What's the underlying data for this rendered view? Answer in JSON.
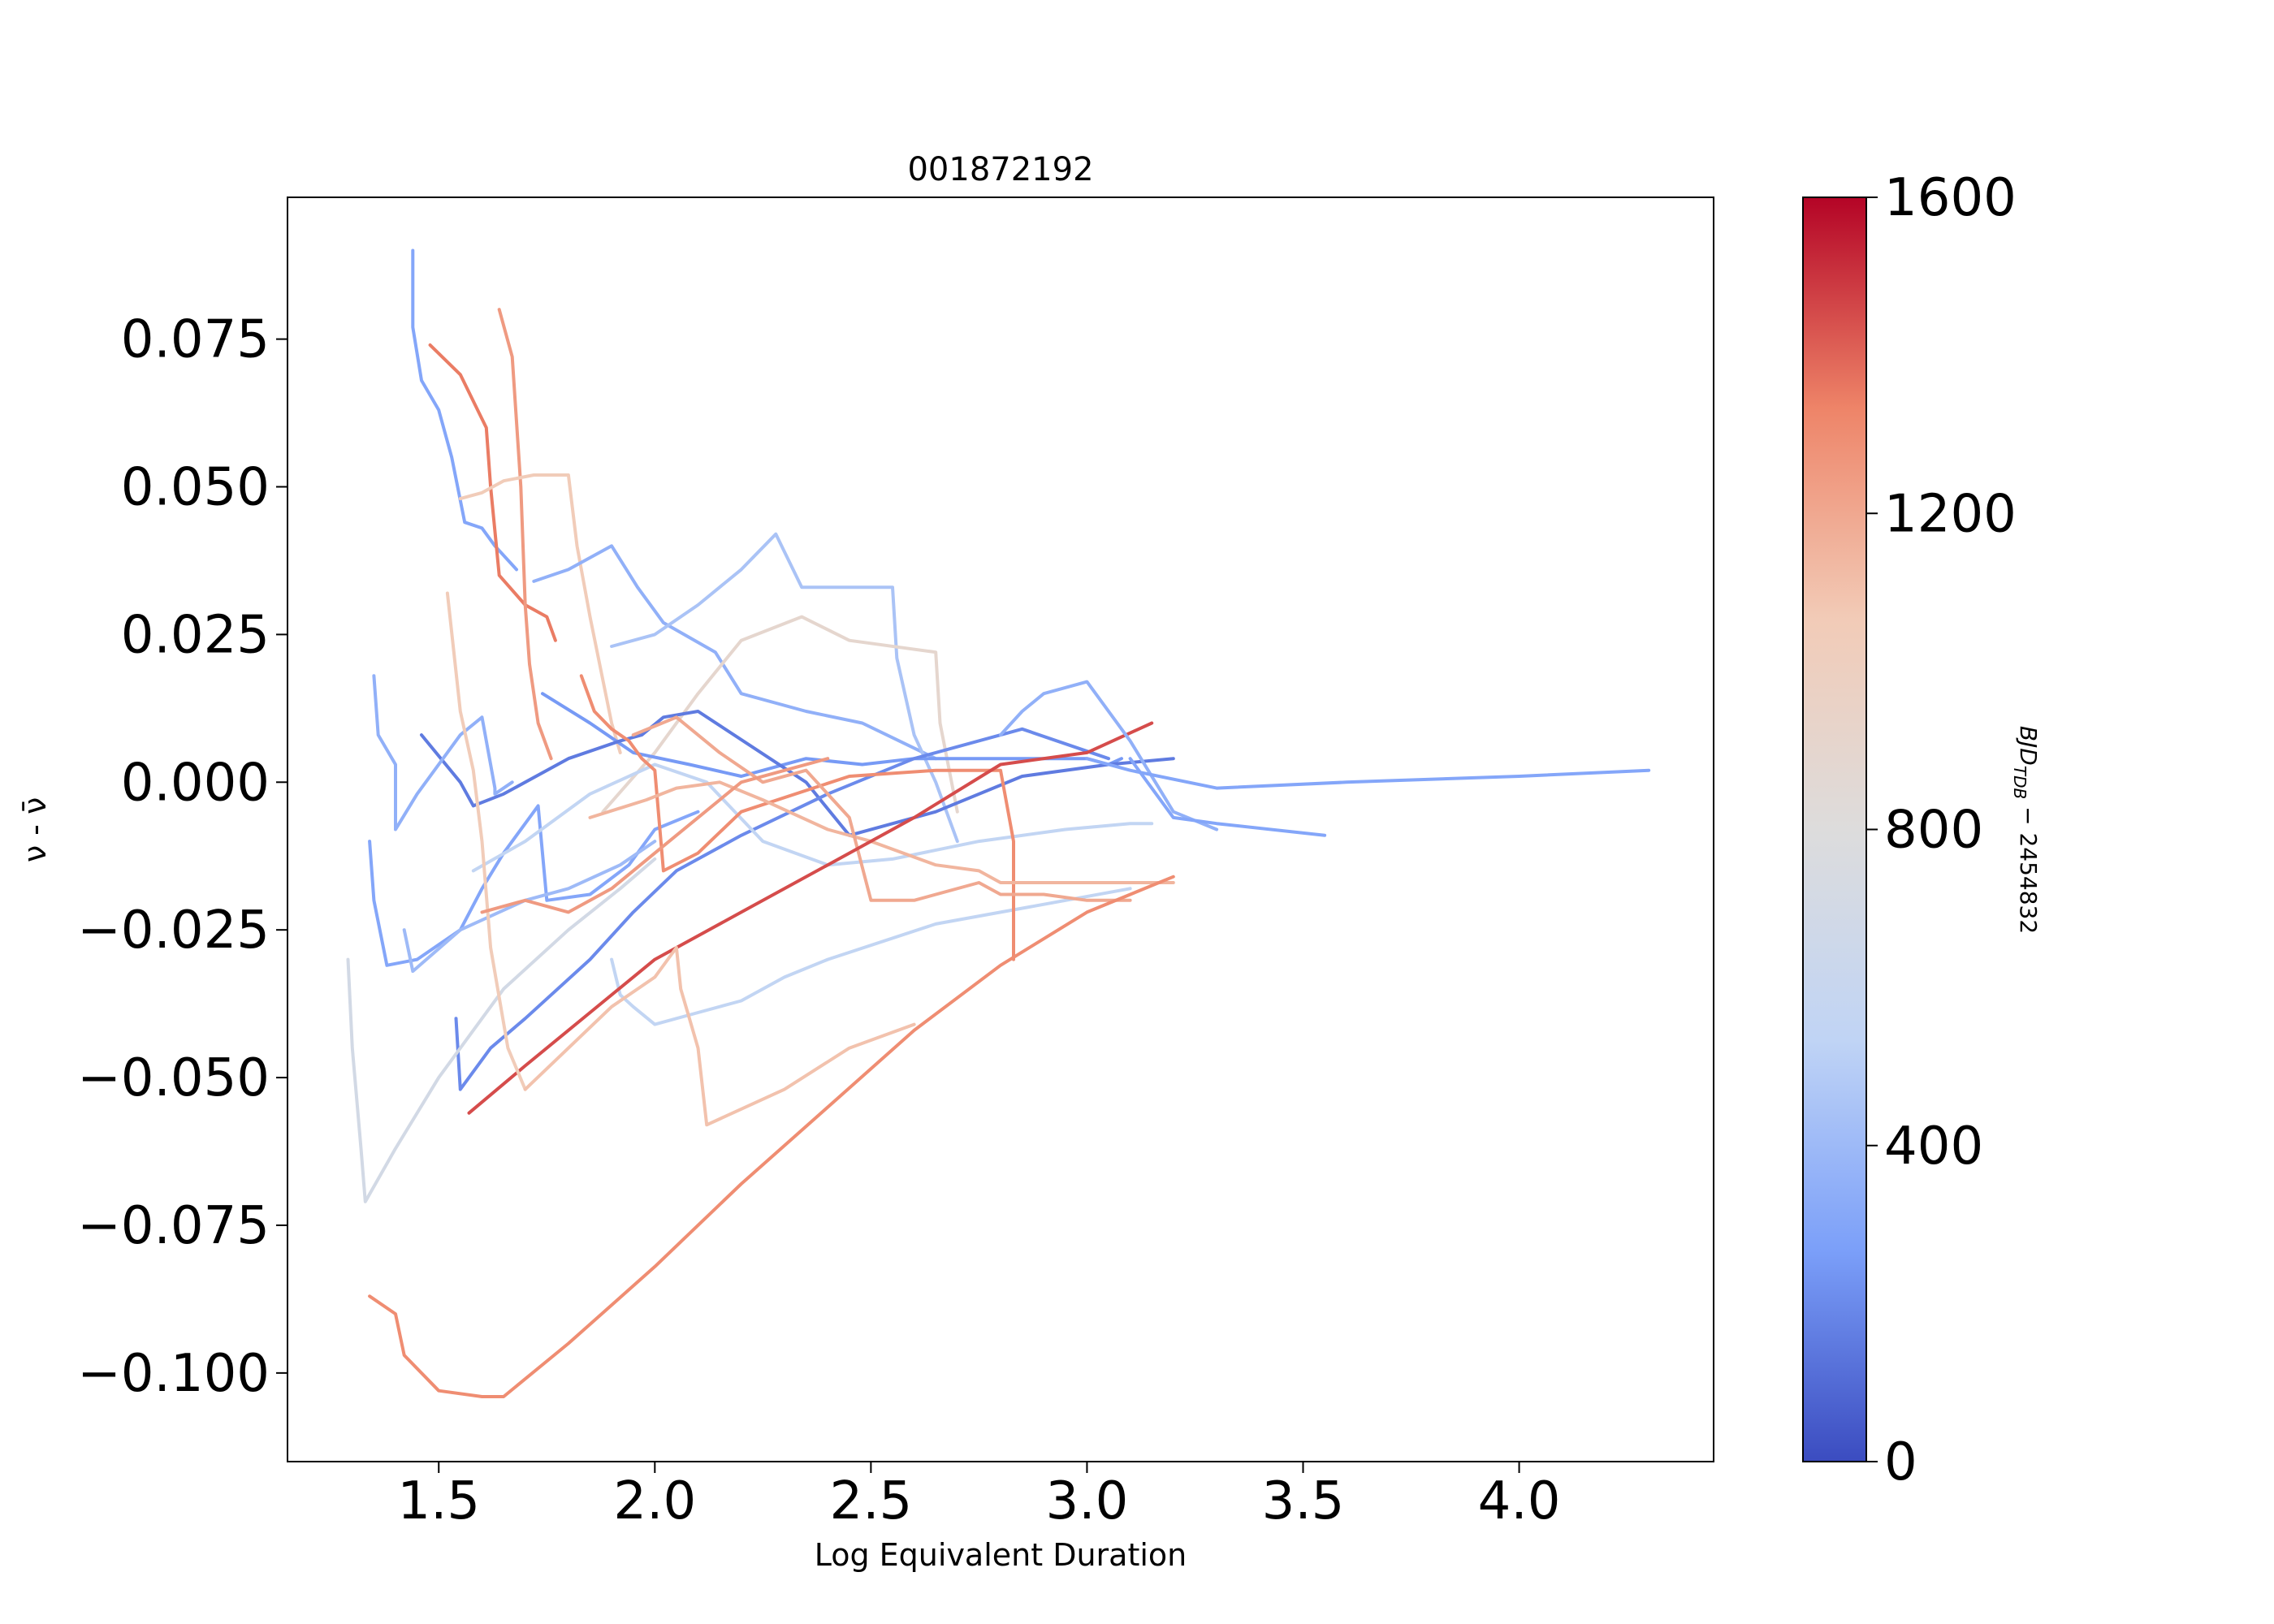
{
  "chart_data": {
    "type": "line",
    "title": "001872192",
    "xlabel": "Log Equivalent Duration",
    "ylabel": "ν - ν̄",
    "xlim": [
      1.15,
      4.45
    ],
    "ylim": [
      -0.115,
      0.099
    ],
    "x_ticks": [
      1.5,
      2.0,
      2.5,
      3.0,
      3.5,
      4.0
    ],
    "x_tick_labels": [
      "1.5",
      "2.0",
      "2.5",
      "3.0",
      "3.5",
      "4.0"
    ],
    "y_ticks": [
      0.075,
      0.05,
      0.025,
      0.0,
      -0.025,
      -0.05,
      -0.075,
      -0.1
    ],
    "y_tick_labels": [
      "0.075",
      "0.050",
      "0.025",
      "0.000",
      "−0.025",
      "−0.050",
      "−0.075",
      "−0.100"
    ],
    "grid": false,
    "colorbar": {
      "label": "BJD_TDB − 2454832",
      "label_main": "BJD",
      "label_sub": "TDB",
      "label_suffix": " − 2454832",
      "min": 0,
      "max": 1600,
      "ticks": [
        0,
        400,
        800,
        1200,
        1600
      ],
      "tick_labels": [
        "0",
        "400",
        "800",
        "1200",
        "1600"
      ],
      "colormap": "coolwarm",
      "color_stops": [
        "#3b4cc0",
        "#7b9ff9",
        "#c0d4f5",
        "#dddcdc",
        "#f2cbb7",
        "#ee8468",
        "#b40426"
      ]
    },
    "series": [
      {
        "t": 300,
        "x": [
          1.44,
          1.44,
          1.46,
          1.5,
          1.53,
          1.56,
          1.6,
          1.63,
          1.68
        ],
        "y": [
          0.09,
          0.077,
          0.068,
          0.063,
          0.055,
          0.044,
          0.043,
          0.04,
          0.036
        ]
      },
      {
        "t": 1350,
        "x": [
          1.48,
          1.55,
          1.61,
          1.62,
          1.64,
          1.7,
          1.75,
          1.77
        ],
        "y": [
          0.074,
          0.069,
          0.06,
          0.05,
          0.035,
          0.03,
          0.028,
          0.024
        ]
      },
      {
        "t": 1250,
        "x": [
          1.64,
          1.67,
          1.69,
          1.7,
          1.71,
          1.73,
          1.76
        ],
        "y": [
          0.08,
          0.072,
          0.05,
          0.03,
          0.02,
          0.01,
          0.004
        ]
      },
      {
        "t": 1050,
        "x": [
          1.55,
          1.6,
          1.65,
          1.72,
          1.8,
          1.82,
          1.85,
          1.9,
          1.92
        ],
        "y": [
          0.048,
          0.049,
          0.051,
          0.052,
          0.052,
          0.04,
          0.028,
          0.01,
          0.005
        ]
      },
      {
        "t": 350,
        "x": [
          1.72,
          1.8,
          1.9,
          1.96,
          2.02,
          2.14,
          2.2,
          2.35,
          2.48,
          2.65
        ],
        "y": [
          0.034,
          0.036,
          0.04,
          0.033,
          0.027,
          0.022,
          0.015,
          0.012,
          0.01,
          0.004
        ]
      },
      {
        "t": 450,
        "x": [
          1.9,
          2.0,
          2.1,
          2.2,
          2.28,
          2.34,
          2.55,
          2.56,
          2.6,
          2.65,
          2.7
        ],
        "y": [
          0.023,
          0.025,
          0.03,
          0.036,
          0.042,
          0.033,
          0.033,
          0.021,
          0.008,
          0.0,
          -0.01
        ]
      },
      {
        "t": 900,
        "x": [
          1.88,
          2.0,
          2.1,
          2.2,
          2.34,
          2.45,
          2.65,
          2.66,
          2.7
        ],
        "y": [
          -0.005,
          0.005,
          0.015,
          0.024,
          0.028,
          0.024,
          0.022,
          0.01,
          -0.005
        ]
      },
      {
        "t": 250,
        "x": [
          1.74,
          1.85,
          1.95,
          2.08,
          2.2,
          2.35,
          2.48,
          2.6,
          2.88,
          2.95,
          3.0,
          3.05,
          3.08
        ],
        "y": [
          0.015,
          0.01,
          0.005,
          0.003,
          0.001,
          0.004,
          0.003,
          0.004,
          0.004,
          0.004,
          0.004,
          0.003,
          0.004
        ]
      },
      {
        "t": 150,
        "x": [
          1.46,
          1.55,
          1.58,
          1.65,
          1.8,
          1.92,
          1.97,
          2.02,
          2.1,
          2.35,
          2.45,
          2.65,
          2.85,
          3.05,
          3.2
        ],
        "y": [
          0.008,
          0.0,
          -0.004,
          -0.002,
          0.004,
          0.007,
          0.008,
          0.011,
          0.012,
          0.0,
          -0.009,
          -0.005,
          0.001,
          0.003,
          0.004
        ]
      },
      {
        "t": 350,
        "x": [
          1.35,
          1.36,
          1.4,
          1.4,
          1.45,
          1.55,
          1.6,
          1.63,
          1.63,
          1.67
        ],
        "y": [
          0.018,
          0.008,
          0.003,
          -0.008,
          -0.002,
          0.008,
          0.011,
          -0.001,
          -0.002,
          0.0
        ]
      },
      {
        "t": 300,
        "x": [
          1.34,
          1.35,
          1.38,
          1.45,
          1.55,
          1.6,
          1.65,
          1.73,
          1.75,
          1.85,
          1.94,
          2.0,
          2.1
        ],
        "y": [
          -0.01,
          -0.02,
          -0.031,
          -0.03,
          -0.025,
          -0.018,
          -0.012,
          -0.004,
          -0.02,
          -0.019,
          -0.014,
          -0.008,
          -0.005
        ]
      },
      {
        "t": 400,
        "x": [
          1.42,
          1.44,
          1.55,
          1.7,
          1.8,
          1.92,
          2.0
        ],
        "y": [
          -0.025,
          -0.032,
          -0.025,
          -0.02,
          -0.018,
          -0.014,
          -0.01
        ]
      },
      {
        "t": 200,
        "x": [
          1.54,
          1.55,
          1.62,
          1.7,
          1.85,
          1.95,
          2.05,
          2.2,
          2.4,
          2.6,
          2.85,
          3.05
        ],
        "y": [
          -0.04,
          -0.052,
          -0.045,
          -0.04,
          -0.03,
          -0.022,
          -0.015,
          -0.009,
          -0.002,
          0.004,
          0.009,
          0.004
        ]
      },
      {
        "t": 700,
        "x": [
          1.29,
          1.3,
          1.32,
          1.33,
          1.4,
          1.5,
          1.65,
          1.8,
          1.92,
          2.0
        ],
        "y": [
          -0.03,
          -0.045,
          -0.062,
          -0.071,
          -0.062,
          -0.05,
          -0.035,
          -0.025,
          -0.018,
          -0.013
        ]
      },
      {
        "t": 550,
        "x": [
          1.58,
          1.7,
          1.85,
          2.0,
          2.12,
          2.25,
          2.4,
          2.55,
          2.75,
          2.95,
          3.1,
          3.15
        ],
        "y": [
          -0.015,
          -0.01,
          -0.002,
          0.003,
          0.0,
          -0.01,
          -0.014,
          -0.013,
          -0.01,
          -0.008,
          -0.007,
          -0.007
        ]
      },
      {
        "t": 550,
        "x": [
          1.9,
          1.92,
          1.95,
          2.0,
          2.1,
          2.2,
          2.3,
          2.4,
          2.65,
          2.8,
          3.1
        ],
        "y": [
          -0.03,
          -0.036,
          -0.038,
          -0.041,
          -0.039,
          -0.037,
          -0.033,
          -0.03,
          -0.024,
          -0.022,
          -0.018
        ]
      },
      {
        "t": 1300,
        "x": [
          1.83,
          1.86,
          1.9,
          1.94,
          1.97,
          2.0,
          2.02,
          2.1,
          2.2,
          2.45,
          2.65,
          2.8,
          2.83,
          2.83
        ],
        "y": [
          0.018,
          0.012,
          0.009,
          0.007,
          0.004,
          0.002,
          -0.015,
          -0.012,
          -0.005,
          0.001,
          0.002,
          0.002,
          -0.01,
          -0.03
        ]
      },
      {
        "t": 1150,
        "x": [
          1.85,
          1.98,
          2.05,
          2.15,
          2.25,
          2.4,
          2.5,
          2.65,
          2.75,
          2.8,
          2.9,
          3.0,
          3.1,
          3.2
        ],
        "y": [
          -0.006,
          -0.003,
          -0.001,
          0.0,
          -0.003,
          -0.008,
          -0.01,
          -0.014,
          -0.015,
          -0.017,
          -0.017,
          -0.017,
          -0.017,
          -0.017
        ]
      },
      {
        "t": 1200,
        "x": [
          1.95,
          2.05,
          2.15,
          2.25,
          2.35,
          2.45,
          2.5,
          2.6,
          2.75,
          2.8,
          2.9,
          3.0,
          3.1
        ],
        "y": [
          0.008,
          0.011,
          0.005,
          0.0,
          0.002,
          -0.006,
          -0.02,
          -0.02,
          -0.017,
          -0.019,
          -0.019,
          -0.02,
          -0.02
        ]
      },
      {
        "t": 1450,
        "x": [
          1.57,
          1.7,
          1.85,
          2.0,
          2.2,
          2.4,
          2.6,
          2.8,
          3.0,
          3.15
        ],
        "y": [
          -0.056,
          -0.048,
          -0.039,
          -0.03,
          -0.022,
          -0.014,
          -0.006,
          0.003,
          0.005,
          0.01
        ]
      },
      {
        "t": 1300,
        "x": [
          1.34,
          1.4,
          1.42,
          1.5,
          1.6,
          1.65,
          1.8,
          2.0,
          2.2,
          2.4,
          2.6,
          2.8,
          3.0,
          3.2
        ],
        "y": [
          -0.087,
          -0.09,
          -0.097,
          -0.103,
          -0.104,
          -0.104,
          -0.095,
          -0.082,
          -0.068,
          -0.055,
          -0.042,
          -0.031,
          -0.022,
          -0.016
        ]
      },
      {
        "t": 1050,
        "x": [
          1.52,
          1.55,
          1.58,
          1.6,
          1.62,
          1.66,
          1.7
        ],
        "y": [
          0.032,
          0.012,
          0.002,
          -0.01,
          -0.028,
          -0.045,
          -0.052
        ]
      },
      {
        "t": 1100,
        "x": [
          1.7,
          1.8,
          1.9,
          2.0,
          2.05,
          2.06,
          2.08,
          2.1,
          2.12,
          2.3,
          2.45,
          2.6
        ],
        "y": [
          -0.052,
          -0.045,
          -0.038,
          -0.033,
          -0.028,
          -0.035,
          -0.04,
          -0.045,
          -0.058,
          -0.052,
          -0.045,
          -0.041
        ]
      },
      {
        "t": 1250,
        "x": [
          1.6,
          1.7,
          1.8,
          1.9,
          2.0,
          2.1,
          2.2,
          2.4
        ],
        "y": [
          -0.022,
          -0.02,
          -0.022,
          -0.018,
          -0.012,
          -0.006,
          0.0,
          0.004
        ]
      },
      {
        "t": 350,
        "x": [
          2.8,
          2.85,
          2.9,
          3.0,
          3.1,
          3.2,
          3.3
        ],
        "y": [
          0.008,
          0.012,
          0.015,
          0.017,
          0.007,
          -0.005,
          -0.008
        ]
      },
      {
        "t": 300,
        "x": [
          3.0,
          3.1,
          3.3,
          3.6,
          4.0,
          4.3
        ],
        "y": [
          0.004,
          0.002,
          -0.001,
          0.0,
          0.001,
          0.002
        ]
      },
      {
        "t": 300,
        "x": [
          3.1,
          3.2,
          3.3,
          3.55
        ],
        "y": [
          0.004,
          -0.006,
          -0.007,
          -0.009
        ]
      }
    ]
  }
}
